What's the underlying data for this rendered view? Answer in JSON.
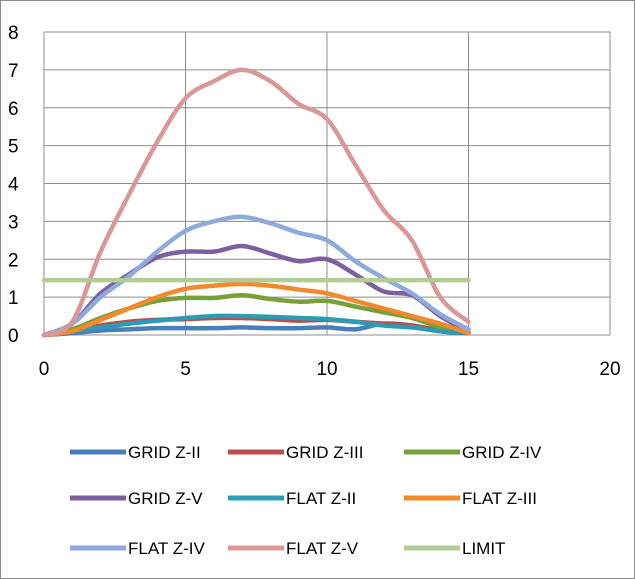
{
  "chart_data": {
    "type": "line",
    "title": "",
    "xlabel": "",
    "ylabel": "",
    "xlim": [
      0,
      20
    ],
    "ylim": [
      0,
      8
    ],
    "xticks": [
      0,
      5,
      10,
      15,
      20
    ],
    "yticks": [
      0,
      1,
      2,
      3,
      4,
      5,
      6,
      7,
      8
    ],
    "grid": true,
    "legend_position": "bottom",
    "series": [
      {
        "name": "GRID  Z-II",
        "color": "#4a7ebb",
        "x": [
          0,
          1,
          2,
          3,
          4,
          5,
          6,
          7,
          8,
          9,
          10,
          11,
          12,
          13,
          14,
          15
        ],
        "y": [
          0,
          0.05,
          0.12,
          0.15,
          0.18,
          0.18,
          0.18,
          0.2,
          0.18,
          0.18,
          0.2,
          0.15,
          0.3,
          0.25,
          0.1,
          0.05
        ]
      },
      {
        "name": "GRID  Z-III",
        "color": "#be4b48",
        "x": [
          0,
          1,
          2,
          3,
          4,
          5,
          6,
          7,
          8,
          9,
          10,
          11,
          12,
          13,
          14,
          15
        ],
        "y": [
          0,
          0.1,
          0.25,
          0.35,
          0.4,
          0.42,
          0.45,
          0.45,
          0.42,
          0.38,
          0.4,
          0.35,
          0.3,
          0.25,
          0.12,
          0.05
        ]
      },
      {
        "name": "GRID  Z-IV",
        "color": "#77a03a",
        "x": [
          0,
          1,
          2,
          3,
          4,
          5,
          6,
          7,
          8,
          9,
          10,
          11,
          12,
          13,
          14,
          15
        ],
        "y": [
          0,
          0.15,
          0.45,
          0.7,
          0.9,
          0.98,
          0.98,
          1.05,
          0.95,
          0.88,
          0.9,
          0.75,
          0.6,
          0.45,
          0.2,
          0.05
        ]
      },
      {
        "name": "GRID  Z-V",
        "color": "#7d5fa0",
        "x": [
          0,
          1,
          2,
          3,
          4,
          5,
          6,
          7,
          8,
          9,
          10,
          11,
          12,
          13,
          14,
          15
        ],
        "y": [
          0,
          0.3,
          1.1,
          1.6,
          2.05,
          2.2,
          2.2,
          2.35,
          2.15,
          1.95,
          2.0,
          1.6,
          1.15,
          1.05,
          0.5,
          0.1
        ]
      },
      {
        "name": "FLAT Z-II",
        "color": "#2c9bb3",
        "x": [
          0,
          1,
          2,
          3,
          4,
          5,
          6,
          7,
          8,
          9,
          10,
          11,
          12,
          13,
          14,
          15
        ],
        "y": [
          0,
          0.1,
          0.2,
          0.3,
          0.38,
          0.45,
          0.5,
          0.5,
          0.48,
          0.45,
          0.42,
          0.35,
          0.25,
          0.2,
          0.1,
          0.05
        ]
      },
      {
        "name": "FLAT Z-III",
        "color": "#f08a2c",
        "x": [
          0,
          1,
          2,
          3,
          4,
          5,
          6,
          7,
          8,
          9,
          10,
          11,
          12,
          13,
          14,
          15
        ],
        "y": [
          0,
          0.1,
          0.4,
          0.7,
          1.0,
          1.22,
          1.3,
          1.35,
          1.3,
          1.2,
          1.1,
          0.9,
          0.7,
          0.5,
          0.3,
          0.05
        ]
      },
      {
        "name": "FLAT Z-IV",
        "color": "#8eaadc",
        "x": [
          0,
          1,
          2,
          3,
          4,
          5,
          6,
          7,
          8,
          9,
          10,
          11,
          12,
          13,
          14,
          15
        ],
        "y": [
          0,
          0.3,
          1.0,
          1.55,
          2.2,
          2.75,
          3.0,
          3.12,
          2.95,
          2.7,
          2.5,
          1.95,
          1.5,
          1.1,
          0.55,
          0.15
        ]
      },
      {
        "name": "FLAT Z-V",
        "color": "#d99795",
        "x": [
          0,
          1,
          2,
          3,
          4,
          5,
          6,
          7,
          8,
          9,
          10,
          11,
          12,
          13,
          14,
          15
        ],
        "y": [
          0,
          0.35,
          2.2,
          3.7,
          5.1,
          6.25,
          6.7,
          7.0,
          6.7,
          6.1,
          5.7,
          4.5,
          3.3,
          2.5,
          1.0,
          0.35
        ]
      },
      {
        "name": "LIMIT",
        "color": "#b3cc93",
        "x": [
          0,
          15
        ],
        "y": [
          1.45,
          1.45
        ]
      }
    ]
  }
}
